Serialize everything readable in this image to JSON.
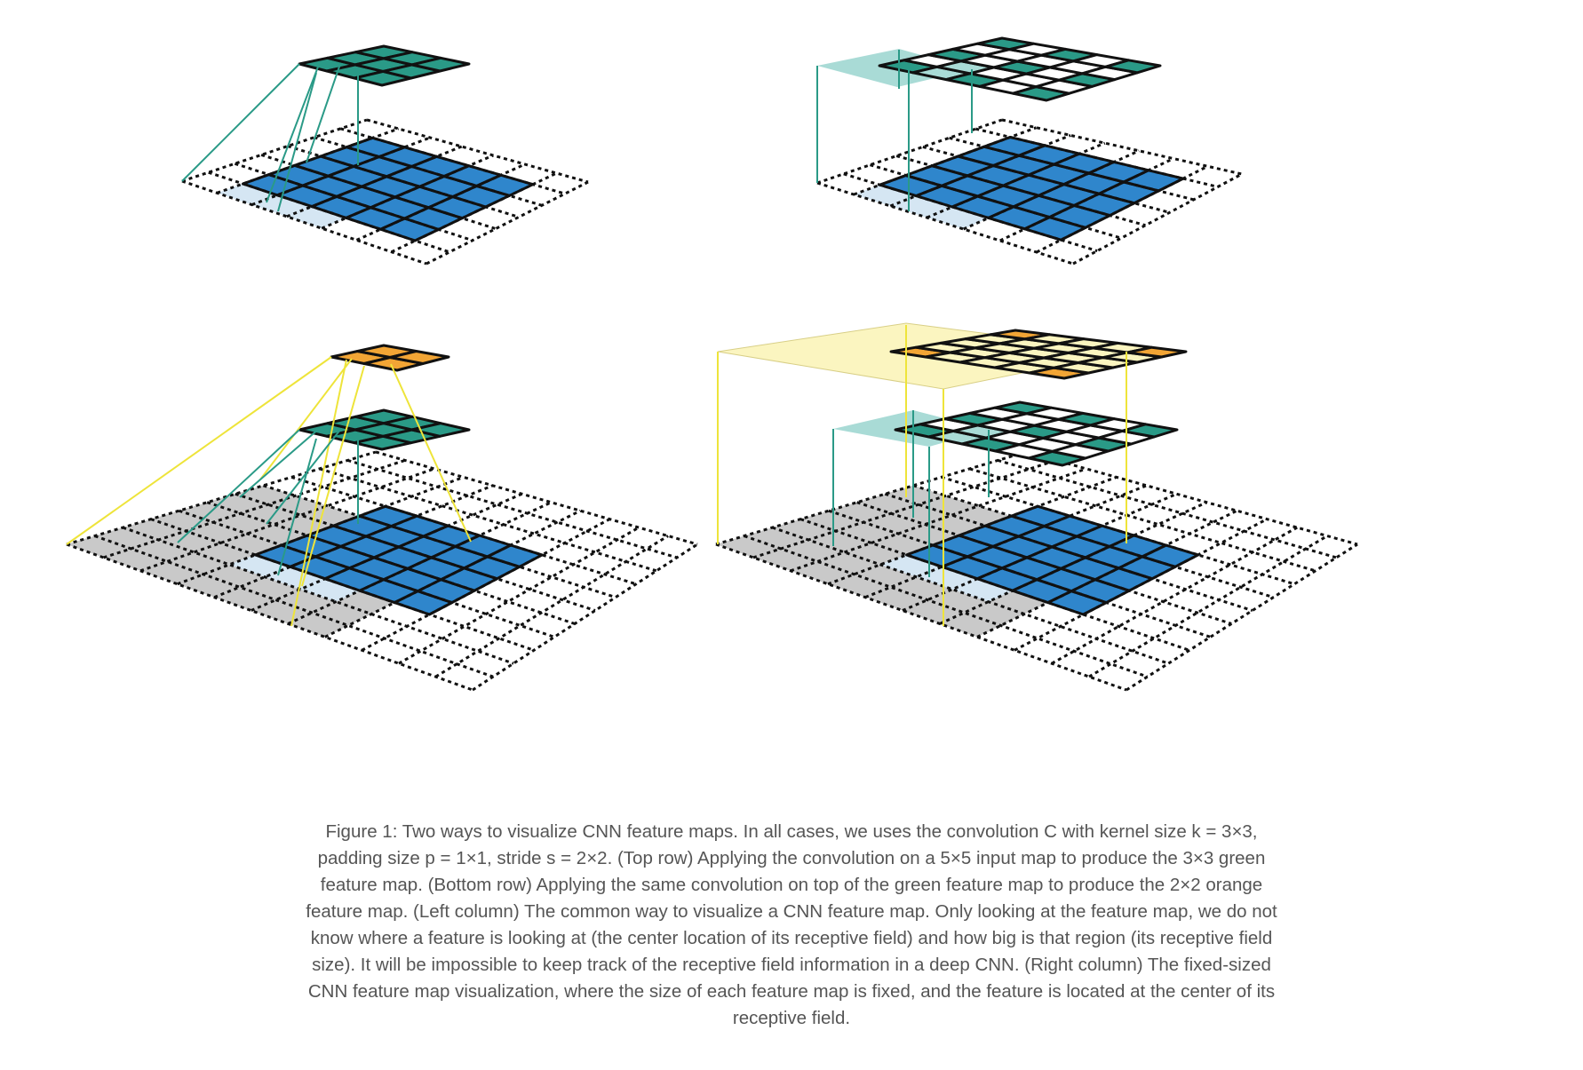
{
  "figure": {
    "panels": [
      {
        "id": "top-left",
        "row": "top",
        "column": "left",
        "layers": [
          "input-5x5-padded",
          "green-3x3"
        ],
        "visualization": "common"
      },
      {
        "id": "top-right",
        "row": "top",
        "column": "right",
        "layers": [
          "input-5x5-padded",
          "green-3x3-fixed-size"
        ],
        "visualization": "fixed-size"
      },
      {
        "id": "bottom-left",
        "row": "bottom",
        "column": "left",
        "layers": [
          "input-5x5-padded",
          "green-3x3",
          "orange-2x2"
        ],
        "visualization": "common"
      },
      {
        "id": "bottom-right",
        "row": "bottom",
        "column": "right",
        "layers": [
          "input-5x5-padded",
          "green-3x3-fixed-size",
          "orange-2x2-fixed-size"
        ],
        "visualization": "fixed-size"
      }
    ],
    "colors": {
      "input_blue": "#2f86cc",
      "green": "#2a9a87",
      "orange": "#f2a535",
      "light_blue_receptive": "#d5e6f3",
      "light_teal_receptive": "#a9dbd6",
      "light_yellow_receptive": "#fbf5c0",
      "gray_padding": "#c9c9c9",
      "teal_line": "#2a9a87",
      "yellow_line": "#eee43a",
      "grid_line": "#111111"
    }
  },
  "caption": "Figure 1: Two ways to visualize CNN feature maps. In all cases, we uses the convolution C with kernel size k = 3×3, padding size p = 1×1, stride s = 2×2. (Top row) Applying the convolution on a 5×5 input map to produce the 3×3 green feature map. (Bottom row) Applying the same convolution on top of the green feature map to produce the 2×2 orange feature map. (Left column) The common way to visualize a CNN feature map. Only looking at the feature map, we do not know where a feature is looking at (the center location of its receptive field) and how big is that region (its receptive field size). It will be impossible to keep track of the receptive field information in a deep CNN. (Right column) The fixed-sized CNN feature map visualization, where the size of each feature map is fixed, and the feature is located at the center of its receptive field."
}
